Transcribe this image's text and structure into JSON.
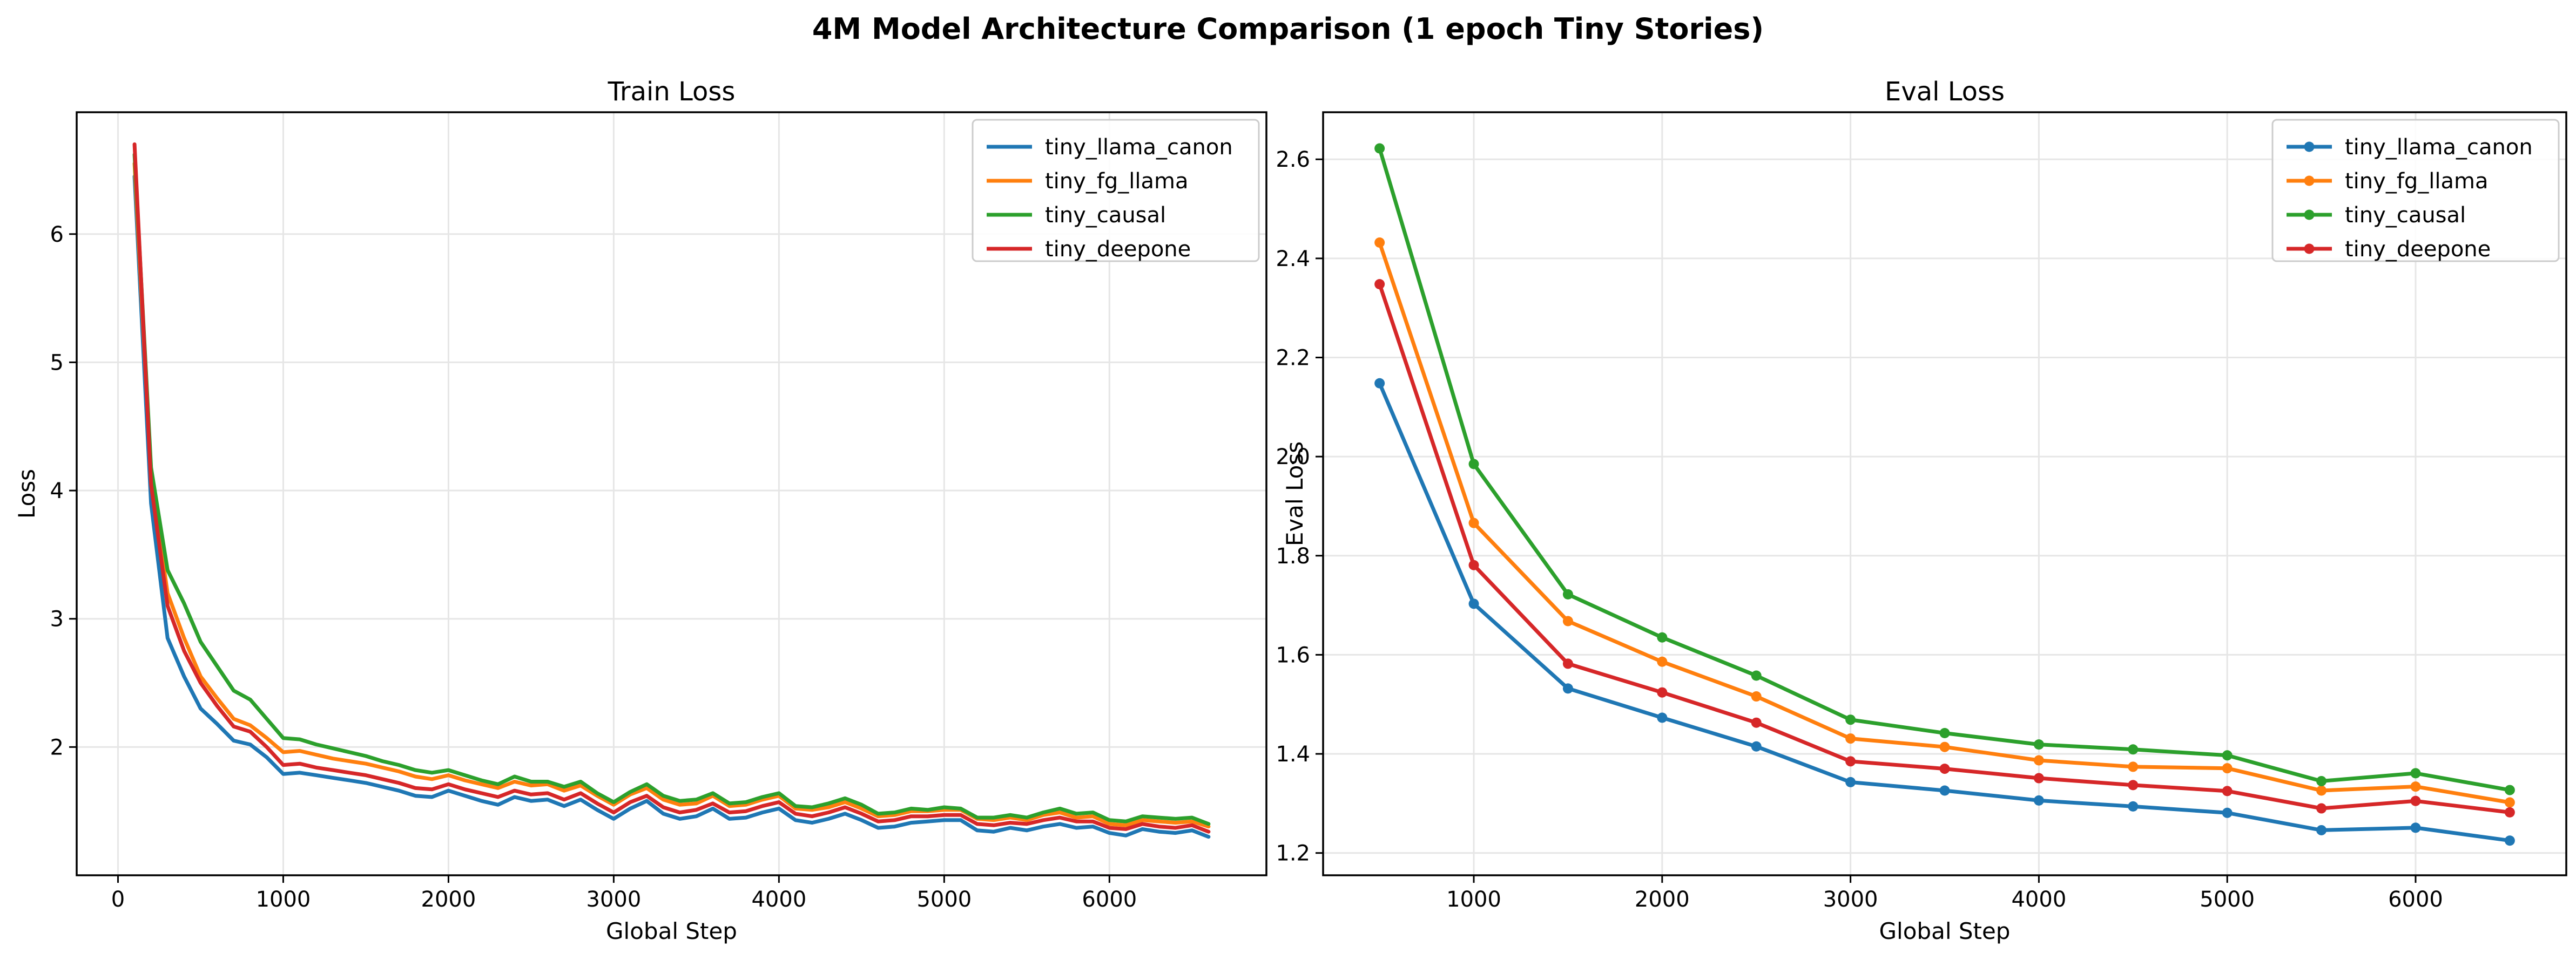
{
  "figure": {
    "suptitle": "4M Model Architecture Comparison (1 epoch Tiny Stories)"
  },
  "colors": {
    "tiny_llama_canon": "#1f77b4",
    "tiny_fg_llama": "#ff7f0e",
    "tiny_causal": "#2ca02c",
    "tiny_deepone": "#d62728",
    "grid": "#e6e6e6",
    "axes": "#000000"
  },
  "chart_data": [
    {
      "type": "line",
      "title": "Train Loss",
      "xlabel": "Global Step",
      "ylabel": "Loss",
      "xlim": [
        -250,
        6950
      ],
      "ylim": [
        1.0,
        6.95
      ],
      "xticks": [
        0,
        1000,
        2000,
        3000,
        4000,
        5000,
        6000
      ],
      "xtick_labels": [
        "0",
        "1000",
        "2000",
        "3000",
        "4000",
        "5000",
        "6000"
      ],
      "yticks": [
        2,
        3,
        4,
        5,
        6
      ],
      "ytick_labels": [
        "2",
        "3",
        "4",
        "5",
        "6"
      ],
      "grid": true,
      "markers": false,
      "legend_position": "top-right",
      "x": [
        100,
        200,
        300,
        400,
        500,
        600,
        700,
        800,
        900,
        1000,
        1100,
        1200,
        1300,
        1400,
        1500,
        1600,
        1700,
        1800,
        1900,
        2000,
        2100,
        2200,
        2300,
        2400,
        2500,
        2600,
        2700,
        2800,
        2900,
        3000,
        3100,
        3200,
        3300,
        3400,
        3500,
        3600,
        3700,
        3800,
        3900,
        4000,
        4100,
        4200,
        4300,
        4400,
        4500,
        4600,
        4700,
        4800,
        4900,
        5000,
        5100,
        5200,
        5300,
        5400,
        5500,
        5600,
        5700,
        5800,
        5900,
        6000,
        6100,
        6200,
        6300,
        6400,
        6500,
        6600
      ],
      "series": [
        {
          "name": "tiny_llama_canon",
          "color_key": "tiny_llama_canon",
          "values": [
            6.45,
            3.9,
            2.85,
            2.55,
            2.3,
            2.18,
            2.05,
            2.02,
            1.92,
            1.79,
            1.8,
            1.78,
            1.76,
            1.74,
            1.72,
            1.69,
            1.66,
            1.62,
            1.61,
            1.66,
            1.62,
            1.58,
            1.55,
            1.61,
            1.58,
            1.59,
            1.54,
            1.59,
            1.51,
            1.44,
            1.52,
            1.58,
            1.48,
            1.44,
            1.46,
            1.52,
            1.44,
            1.45,
            1.49,
            1.52,
            1.43,
            1.41,
            1.44,
            1.48,
            1.43,
            1.37,
            1.38,
            1.41,
            1.42,
            1.43,
            1.43,
            1.35,
            1.34,
            1.37,
            1.35,
            1.38,
            1.4,
            1.37,
            1.38,
            1.33,
            1.31,
            1.36,
            1.34,
            1.33,
            1.35,
            1.3
          ]
        },
        {
          "name": "tiny_fg_llama",
          "color_key": "tiny_fg_llama",
          "values": [
            6.55,
            4.1,
            3.2,
            2.85,
            2.55,
            2.38,
            2.22,
            2.17,
            2.07,
            1.96,
            1.97,
            1.94,
            1.91,
            1.89,
            1.87,
            1.84,
            1.81,
            1.77,
            1.75,
            1.78,
            1.74,
            1.71,
            1.68,
            1.73,
            1.7,
            1.71,
            1.66,
            1.7,
            1.62,
            1.55,
            1.63,
            1.68,
            1.59,
            1.55,
            1.56,
            1.62,
            1.54,
            1.55,
            1.59,
            1.62,
            1.52,
            1.51,
            1.53,
            1.57,
            1.52,
            1.46,
            1.47,
            1.5,
            1.5,
            1.51,
            1.51,
            1.44,
            1.43,
            1.45,
            1.43,
            1.47,
            1.49,
            1.45,
            1.46,
            1.4,
            1.39,
            1.43,
            1.42,
            1.41,
            1.42,
            1.38
          ]
        },
        {
          "name": "tiny_causal",
          "color_key": "tiny_causal",
          "values": [
            6.62,
            4.18,
            3.38,
            3.12,
            2.82,
            2.63,
            2.44,
            2.37,
            2.22,
            2.07,
            2.06,
            2.02,
            1.99,
            1.96,
            1.93,
            1.89,
            1.86,
            1.82,
            1.8,
            1.82,
            1.78,
            1.74,
            1.71,
            1.77,
            1.73,
            1.73,
            1.69,
            1.73,
            1.64,
            1.57,
            1.65,
            1.71,
            1.62,
            1.58,
            1.59,
            1.64,
            1.56,
            1.57,
            1.61,
            1.64,
            1.54,
            1.53,
            1.56,
            1.6,
            1.55,
            1.48,
            1.49,
            1.52,
            1.51,
            1.53,
            1.52,
            1.45,
            1.45,
            1.47,
            1.45,
            1.49,
            1.52,
            1.48,
            1.49,
            1.43,
            1.42,
            1.46,
            1.45,
            1.44,
            1.45,
            1.4
          ]
        },
        {
          "name": "tiny_deepone",
          "color_key": "tiny_deepone",
          "values": [
            6.7,
            4.05,
            3.1,
            2.75,
            2.5,
            2.32,
            2.16,
            2.12,
            2.0,
            1.86,
            1.87,
            1.84,
            1.82,
            1.8,
            1.78,
            1.75,
            1.72,
            1.68,
            1.67,
            1.71,
            1.67,
            1.64,
            1.61,
            1.66,
            1.63,
            1.64,
            1.59,
            1.64,
            1.56,
            1.49,
            1.57,
            1.62,
            1.53,
            1.49,
            1.51,
            1.56,
            1.49,
            1.5,
            1.54,
            1.57,
            1.48,
            1.46,
            1.49,
            1.53,
            1.48,
            1.42,
            1.43,
            1.46,
            1.46,
            1.47,
            1.47,
            1.4,
            1.39,
            1.41,
            1.4,
            1.43,
            1.45,
            1.42,
            1.42,
            1.37,
            1.36,
            1.4,
            1.38,
            1.37,
            1.39,
            1.34
          ]
        }
      ]
    },
    {
      "type": "line",
      "title": "Eval Loss",
      "xlabel": "Global Step",
      "ylabel": "Eval Loss",
      "xlim": [
        200,
        6800
      ],
      "ylim": [
        1.155,
        2.695
      ],
      "xticks": [
        1000,
        2000,
        3000,
        4000,
        5000,
        6000
      ],
      "xtick_labels": [
        "1000",
        "2000",
        "3000",
        "4000",
        "5000",
        "6000"
      ],
      "yticks": [
        1.2,
        1.4,
        1.6,
        1.8,
        2.0,
        2.2,
        2.4,
        2.6
      ],
      "ytick_labels": [
        "1.2",
        "1.4",
        "1.6",
        "1.8",
        "2.0",
        "2.2",
        "2.4",
        "2.6"
      ],
      "grid": true,
      "markers": true,
      "legend_position": "top-right",
      "x": [
        500,
        1000,
        1500,
        2000,
        2500,
        3000,
        3500,
        4000,
        4500,
        5000,
        5500,
        6000,
        6500
      ],
      "series": [
        {
          "name": "tiny_llama_canon",
          "color_key": "tiny_llama_canon",
          "values": [
            2.148,
            1.703,
            1.532,
            1.473,
            1.415,
            1.343,
            1.326,
            1.306,
            1.294,
            1.281,
            1.246,
            1.251,
            1.225
          ]
        },
        {
          "name": "tiny_fg_llama",
          "color_key": "tiny_fg_llama",
          "values": [
            2.432,
            1.866,
            1.668,
            1.586,
            1.516,
            1.431,
            1.414,
            1.387,
            1.374,
            1.371,
            1.326,
            1.334,
            1.302
          ]
        },
        {
          "name": "tiny_causal",
          "color_key": "tiny_causal",
          "values": [
            2.622,
            1.985,
            1.722,
            1.635,
            1.558,
            1.469,
            1.442,
            1.419,
            1.409,
            1.397,
            1.345,
            1.361,
            1.327
          ]
        },
        {
          "name": "tiny_deepone",
          "color_key": "tiny_deepone",
          "values": [
            2.348,
            1.781,
            1.582,
            1.524,
            1.463,
            1.385,
            1.37,
            1.351,
            1.337,
            1.325,
            1.29,
            1.305,
            1.282
          ]
        }
      ]
    }
  ]
}
